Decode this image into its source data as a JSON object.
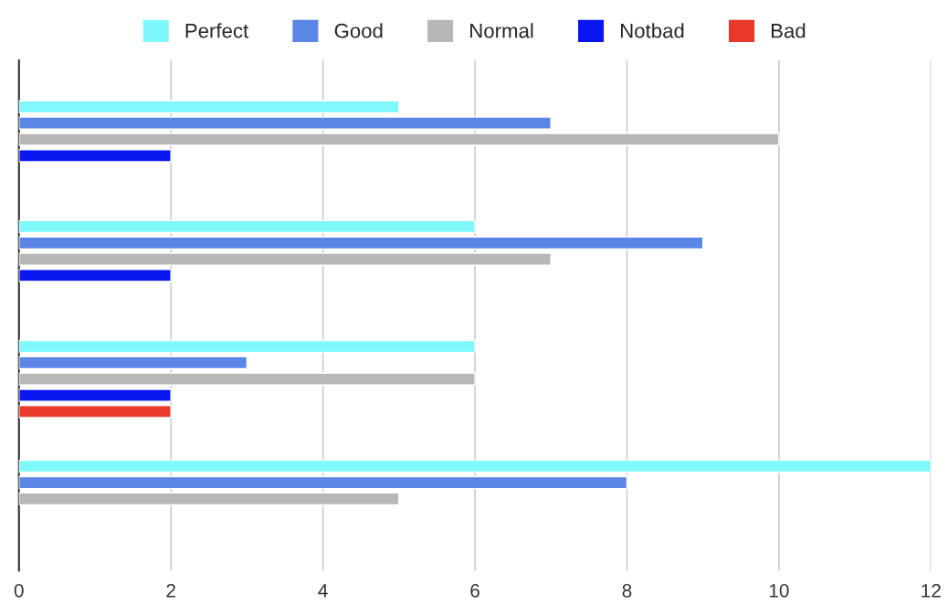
{
  "chart_data": {
    "type": "bar",
    "orientation": "horizontal",
    "categories": [
      null,
      null,
      null,
      null
    ],
    "series": [
      {
        "name": "Perfect",
        "color": "#7ff8fb",
        "values": [
          5,
          6,
          6,
          12
        ]
      },
      {
        "name": "Good",
        "color": "#5b86e5",
        "values": [
          7,
          9,
          3,
          8
        ]
      },
      {
        "name": "Normal",
        "color": "#b7b7b7",
        "values": [
          10,
          7,
          6,
          5
        ]
      },
      {
        "name": "Notbad",
        "color": "#0a16f0",
        "values": [
          2,
          2,
          2,
          null
        ]
      },
      {
        "name": "Bad",
        "color": "#e8392a",
        "values": [
          null,
          null,
          2,
          null
        ]
      }
    ],
    "xlim": [
      0,
      12
    ],
    "xticks": [
      0,
      2,
      4,
      6,
      8,
      10,
      12
    ],
    "grid": "x",
    "legend": "top"
  }
}
